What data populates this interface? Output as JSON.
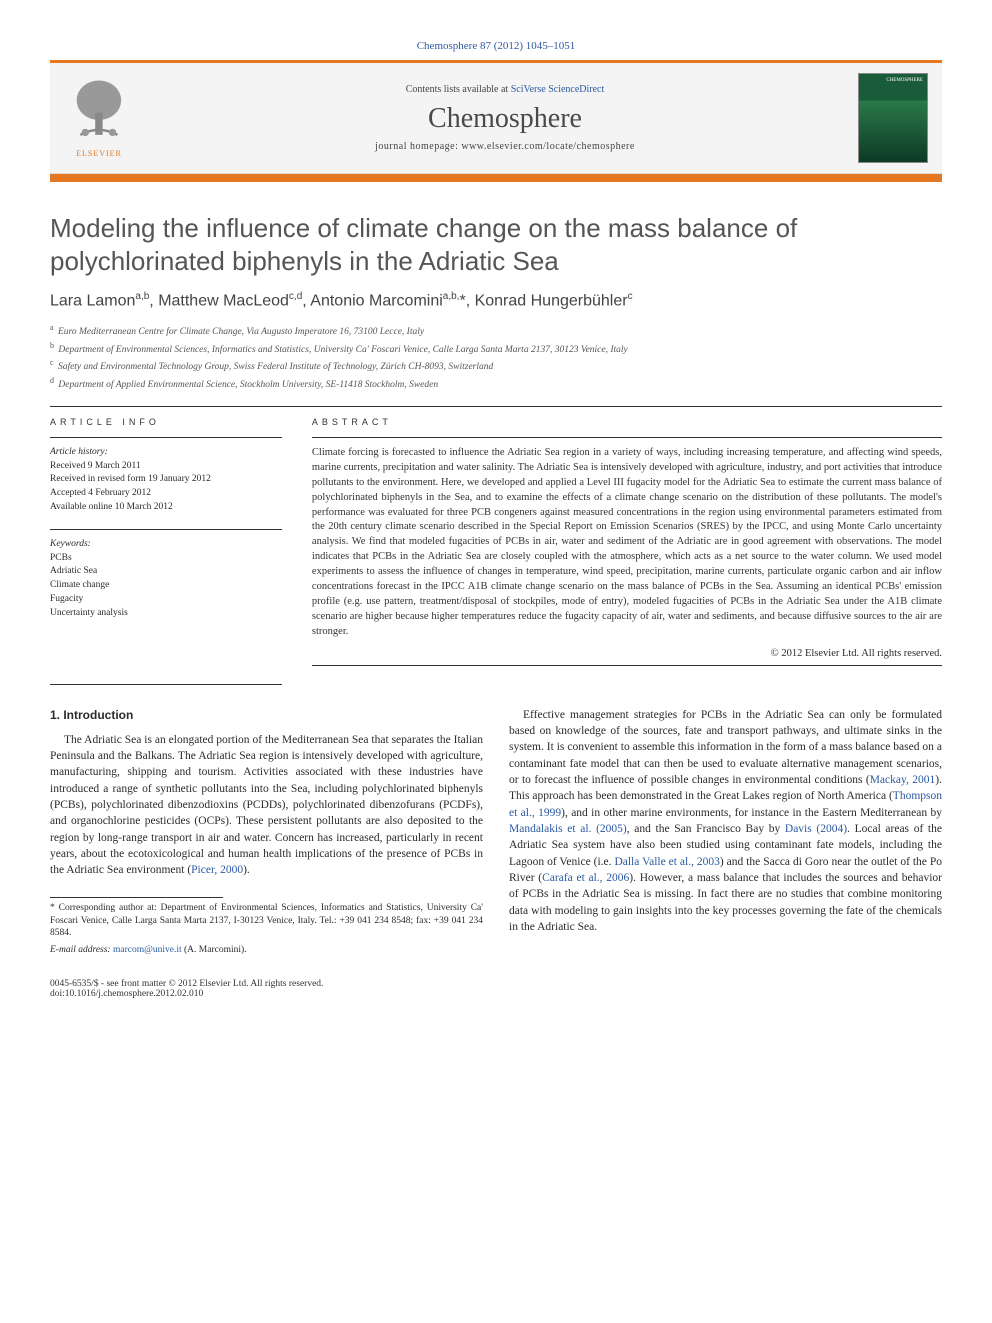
{
  "header": {
    "citation": "Chemosphere 87 (2012) 1045–1051",
    "contents_prefix": "Contents lists available at ",
    "contents_link": "SciVerse ScienceDirect",
    "journal": "Chemosphere",
    "homepage_prefix": "journal homepage: ",
    "homepage_url": "www.elsevier.com/locate/chemosphere",
    "elsevier_label": "ELSEVIER",
    "cover_label": "CHEMOSPHERE"
  },
  "title": "Modeling the influence of climate change on the mass balance of polychlorinated biphenyls in the Adriatic Sea",
  "authors_html": "Lara Lamon<sup>a,b</sup>, Matthew MacLeod<sup>c,d</sup>, Antonio Marcomini<sup>a,b,</sup>*, Konrad Hungerbühler<sup>c</sup>",
  "affiliations": [
    {
      "sup": "a",
      "text": "Euro Mediterranean Centre for Climate Change, Via Augusto Imperatore 16, 73100 Lecce, Italy"
    },
    {
      "sup": "b",
      "text": "Department of Environmental Sciences, Informatics and Statistics, University Ca' Foscari Venice, Calle Larga Santa Marta 2137, 30123 Venice, Italy"
    },
    {
      "sup": "c",
      "text": "Safety and Environmental Technology Group, Swiss Federal Institute of Technology, Zürich CH-8093, Switzerland"
    },
    {
      "sup": "d",
      "text": "Department of Applied Environmental Science, Stockholm University, SE-11418 Stockholm, Sweden"
    }
  ],
  "article_info": {
    "heading": "ARTICLE INFO",
    "history_label": "Article history:",
    "history": [
      "Received 9 March 2011",
      "Received in revised form 19 January 2012",
      "Accepted 4 February 2012",
      "Available online 10 March 2012"
    ],
    "keywords_label": "Keywords:",
    "keywords": [
      "PCBs",
      "Adriatic Sea",
      "Climate change",
      "Fugacity",
      "Uncertainty analysis"
    ]
  },
  "abstract": {
    "heading": "ABSTRACT",
    "text": "Climate forcing is forecasted to influence the Adriatic Sea region in a variety of ways, including increasing temperature, and affecting wind speeds, marine currents, precipitation and water salinity. The Adriatic Sea is intensively developed with agriculture, industry, and port activities that introduce pollutants to the environment. Here, we developed and applied a Level III fugacity model for the Adriatic Sea to estimate the current mass balance of polychlorinated biphenyls in the Sea, and to examine the effects of a climate change scenario on the distribution of these pollutants. The model's performance was evaluated for three PCB congeners against measured concentrations in the region using environmental parameters estimated from the 20th century climate scenario described in the Special Report on Emission Scenarios (SRES) by the IPCC, and using Monte Carlo uncertainty analysis. We find that modeled fugacities of PCBs in air, water and sediment of the Adriatic are in good agreement with observations. The model indicates that PCBs in the Adriatic Sea are closely coupled with the atmosphere, which acts as a net source to the water column. We used model experiments to assess the influence of changes in temperature, wind speed, precipitation, marine currents, particulate organic carbon and air inflow concentrations forecast in the IPCC A1B climate change scenario on the mass balance of PCBs in the Sea. Assuming an identical PCBs' emission profile (e.g. use pattern, treatment/disposal of stockpiles, mode of entry), modeled fugacities of PCBs in the Adriatic Sea under the A1B climate scenario are higher because higher temperatures reduce the fugacity capacity of air, water and sediments, and because diffusive sources to the air are stronger.",
    "copyright": "© 2012 Elsevier Ltd. All rights reserved."
  },
  "body": {
    "section_heading": "1. Introduction",
    "p1_pre": "The Adriatic Sea is an elongated portion of the Mediterranean Sea that separates the Italian Peninsula and the Balkans. The Adriatic Sea region is intensively developed with agriculture, manufacturing, shipping and tourism. Activities associated with these industries have introduced a range of synthetic pollutants into the Sea, including polychlorinated biphenyls (PCBs), polychlorinated dibenzodioxins (PCDDs), polychlorinated dibenzofurans (PCDFs), and organochlorine pesticides (OCPs). These persistent pollutants are also deposited to the region by long-range transport in air and water. Concern has increased, particularly in recent years, about the ecotoxicological and human health implications of the presence of PCBs in the Adriatic Sea environment (",
    "p1_link": "Picer, 2000",
    "p1_post": ").",
    "p2_a": "Effective management strategies for PCBs in the Adriatic Sea can only be formulated based on knowledge of the sources, fate and transport pathways, and ultimate sinks in the system. It is convenient to assemble this information in the form of a mass balance based on a contaminant fate model that can then be used to evaluate alternative management scenarios, or to forecast the influence of possible changes in environmental conditions (",
    "p2_link1": "Mackay, 2001",
    "p2_b": "). This approach has been demonstrated in the Great Lakes region of North America (",
    "p2_link2": "Thompson et al., 1999",
    "p2_c": "), and in other marine environments, for instance in the Eastern Mediterranean by ",
    "p2_link3": "Mandalakis et al. (2005)",
    "p2_d": ", and the San Francisco Bay by ",
    "p2_link4": "Davis (2004)",
    "p2_e": ". Local areas of the Adriatic Sea system have also been studied using contaminant fate models, including the Lagoon of Venice (i.e. ",
    "p2_link5": "Dalla Valle et al., 2003",
    "p2_f": ") and the Sacca di Goro near the outlet of the Po River (",
    "p2_link6": "Carafa et al., 2006",
    "p2_g": "). However, a mass balance that includes the sources and behavior of PCBs in the Adriatic Sea is missing. In fact there are no studies that combine monitoring data with modeling to gain insights into the key processes governing the fate of the chemicals in the Adriatic Sea."
  },
  "footnote": {
    "corresponding": "* Corresponding author at: Department of Environmental Sciences, Informatics and Statistics, University Ca' Foscari Venice, Calle Larga Santa Marta 2137, I-30123 Venice, Italy. Tel.: +39 041 234 8548; fax: +39 041 234 8584.",
    "email_label": "E-mail address: ",
    "email": "marcom@unive.it",
    "email_suffix": " (A. Marcomini)."
  },
  "footer": {
    "left1": "0045-6535/$ - see front matter © 2012 Elsevier Ltd. All rights reserved.",
    "left2": "doi:10.1016/j.chemosphere.2012.02.010"
  },
  "colors": {
    "orange": "#e57820",
    "link": "#2b5aa0",
    "title_gray": "#555555",
    "text": "#2b2b2b"
  }
}
